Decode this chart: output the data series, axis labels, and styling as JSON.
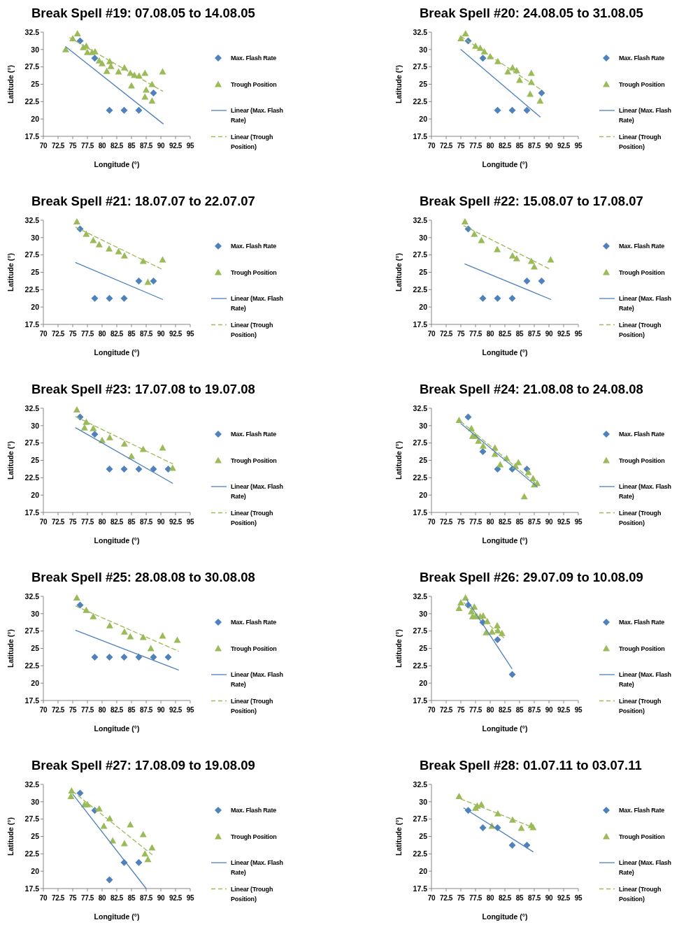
{
  "chart_data": [
    {
      "type": "scatter",
      "title": "Break Spell #19: 07.08.05 to 14.08.05",
      "xlabel": "Longitude (°)",
      "ylabel": "Latitude (°)",
      "xlim": [
        70,
        95
      ],
      "ylim": [
        17.5,
        32.5
      ],
      "xticks": [
        70,
        72.5,
        75,
        77.5,
        80,
        82.5,
        85,
        87.5,
        90,
        92.5,
        95
      ],
      "yticks": [
        17.5,
        20,
        22.5,
        25,
        27.5,
        30,
        32.5
      ],
      "legend": "right",
      "series": [
        {
          "name": "Max. Flash Rate",
          "type": "scatter",
          "marker": "diamond",
          "color": "#4f81bd",
          "x": [
            76.25,
            78.75,
            81.25,
            83.75,
            86.25,
            88.75
          ],
          "values": [
            31.25,
            28.75,
            21.25,
            21.25,
            21.25,
            23.75
          ]
        },
        {
          "name": "Trough Position",
          "type": "scatter",
          "marker": "triangle",
          "color": "#9bbb59",
          "x": [
            73.8,
            75,
            75.8,
            76.8,
            77.3,
            77.5,
            78.3,
            78.8,
            79.5,
            80,
            80.8,
            81.3,
            81.5,
            82.8,
            83.8,
            84.8,
            85,
            85.5,
            86.3,
            87.3,
            87.3,
            87.5,
            88.5,
            88.5,
            90.3
          ],
          "values": [
            30,
            31.6,
            32.3,
            30.3,
            30.5,
            29.6,
            29.6,
            29.7,
            28.4,
            28,
            26.9,
            28.3,
            27.6,
            26.8,
            27.4,
            26.6,
            24.8,
            26.3,
            26.2,
            26.6,
            23.2,
            24.2,
            25,
            22.6,
            26.8
          ]
        },
        {
          "name": "Linear (Max. Flash Rate)",
          "type": "line",
          "marker": "none",
          "line_style": "solid",
          "color": "#4f81bd",
          "x": [
            73.8,
            90.4
          ],
          "values": [
            30.4,
            19.3
          ]
        },
        {
          "name": "Linear (Trough Position)",
          "type": "line",
          "marker": "none",
          "line_style": "dashed",
          "color": "#9bbb59",
          "x": [
            74.5,
            90.3
          ],
          "values": [
            31.7,
            24
          ]
        }
      ]
    },
    {
      "type": "scatter",
      "title": "Break Spell #20: 24.08.05 to 31.08.05",
      "xlabel": "Longitude (°)",
      "ylabel": "Latitude (°)",
      "xlim": [
        70,
        95
      ],
      "ylim": [
        17.5,
        32.5
      ],
      "xticks": [
        70,
        72.5,
        75,
        77.5,
        80,
        82.5,
        85,
        87.5,
        90,
        92.5,
        95
      ],
      "yticks": [
        17.5,
        20,
        22.5,
        25,
        27.5,
        30,
        32.5
      ],
      "legend": "right",
      "series": [
        {
          "name": "Max. Flash Rate",
          "type": "scatter",
          "marker": "diamond",
          "color": "#4f81bd",
          "x": [
            76.25,
            78.75,
            81.25,
            83.75,
            86.25,
            88.75
          ],
          "values": [
            31.25,
            28.75,
            21.25,
            21.25,
            21.25,
            23.75
          ]
        },
        {
          "name": "Trough Position",
          "type": "scatter",
          "marker": "triangle",
          "color": "#9bbb59",
          "x": [
            75,
            75.8,
            77.5,
            78.3,
            79,
            80,
            81.3,
            83,
            83.8,
            84.5,
            85,
            86.8,
            87,
            87,
            88.5
          ],
          "values": [
            31.6,
            32.3,
            30.5,
            30.2,
            29.7,
            29,
            28.3,
            26.8,
            27.4,
            27,
            25.6,
            23.6,
            25.3,
            26.6,
            22.6
          ]
        },
        {
          "name": "Linear (Max. Flash Rate)",
          "type": "line",
          "marker": "none",
          "line_style": "solid",
          "color": "#4f81bd",
          "x": [
            75,
            88.5
          ],
          "values": [
            30,
            20.3
          ]
        },
        {
          "name": "Linear (Trough Position)",
          "type": "line",
          "marker": "none",
          "line_style": "dashed",
          "color": "#9bbb59",
          "x": [
            75,
            88.5
          ],
          "values": [
            31.9,
            24.3
          ]
        }
      ]
    },
    {
      "type": "scatter",
      "title": "Break Spell #21: 18.07.07 to 22.07.07",
      "xlabel": "Longitude (°)",
      "ylabel": "Latitude (°)",
      "xlim": [
        70,
        95
      ],
      "ylim": [
        17.5,
        32.5
      ],
      "xticks": [
        70,
        72.5,
        75,
        77.5,
        80,
        82.5,
        85,
        87.5,
        90,
        92.5,
        95
      ],
      "yticks": [
        17.5,
        20,
        22.5,
        25,
        27.5,
        30,
        32.5
      ],
      "legend": "right",
      "series": [
        {
          "name": "Max. Flash Rate",
          "type": "scatter",
          "marker": "diamond",
          "color": "#4f81bd",
          "x": [
            76.25,
            78.75,
            81.25,
            83.75,
            86.25,
            88.75
          ],
          "values": [
            31.25,
            21.25,
            21.25,
            21.25,
            23.75,
            23.75
          ]
        },
        {
          "name": "Trough Position",
          "type": "scatter",
          "marker": "triangle",
          "color": "#9bbb59",
          "x": [
            75.7,
            77.3,
            78.5,
            79.5,
            81.2,
            82.8,
            83.8,
            87,
            87.8,
            90.3
          ],
          "values": [
            32.3,
            30.5,
            29.6,
            29,
            28.4,
            28,
            27.4,
            26.6,
            23.6,
            26.8
          ]
        },
        {
          "name": "Linear (Max. Flash Rate)",
          "type": "line",
          "marker": "none",
          "line_style": "solid",
          "color": "#4f81bd",
          "x": [
            75.5,
            90.3
          ],
          "values": [
            26.4,
            21.1
          ]
        },
        {
          "name": "Linear (Trough Position)",
          "type": "line",
          "marker": "none",
          "line_style": "dashed",
          "color": "#9bbb59",
          "x": [
            75.5,
            90.3
          ],
          "values": [
            31.5,
            25.4
          ]
        }
      ]
    },
    {
      "type": "scatter",
      "title": "Break Spell #22: 15.08.07 to 17.08.07",
      "xlabel": "Longitude (°)",
      "ylabel": "Latitude (°)",
      "xlim": [
        70,
        95
      ],
      "ylim": [
        17.5,
        32.5
      ],
      "xticks": [
        70,
        72.5,
        75,
        77.5,
        80,
        82.5,
        85,
        87.5,
        90,
        92.5,
        95
      ],
      "yticks": [
        17.5,
        20,
        22.5,
        25,
        27.5,
        30,
        32.5
      ],
      "legend": "right",
      "series": [
        {
          "name": "Max. Flash Rate",
          "type": "scatter",
          "marker": "diamond",
          "color": "#4f81bd",
          "x": [
            76.25,
            78.75,
            81.25,
            83.75,
            86.25,
            88.75
          ],
          "values": [
            31.25,
            21.25,
            21.25,
            21.25,
            23.75,
            23.75
          ]
        },
        {
          "name": "Trough Position",
          "type": "scatter",
          "marker": "triangle",
          "color": "#9bbb59",
          "x": [
            75.7,
            77.3,
            78.5,
            81.2,
            83.8,
            84.5,
            87,
            87.5,
            90.3
          ],
          "values": [
            32.3,
            30.5,
            29.6,
            28.3,
            27.4,
            27,
            26.6,
            25.8,
            26.8
          ]
        },
        {
          "name": "Linear (Max. Flash Rate)",
          "type": "line",
          "marker": "none",
          "line_style": "solid",
          "color": "#4f81bd",
          "x": [
            75.7,
            90.3
          ],
          "values": [
            26.2,
            21.1
          ]
        },
        {
          "name": "Linear (Trough Position)",
          "type": "line",
          "marker": "none",
          "line_style": "dashed",
          "color": "#9bbb59",
          "x": [
            75.5,
            90.3
          ],
          "values": [
            31.7,
            25.4
          ]
        }
      ]
    },
    {
      "type": "scatter",
      "title": "Break Spell #23: 17.07.08 to 19.07.08",
      "xlabel": "Longitude (°)",
      "ylabel": "Latitude (°)",
      "xlim": [
        70,
        95
      ],
      "ylim": [
        17.5,
        32.5
      ],
      "xticks": [
        70,
        72.5,
        75,
        77.5,
        80,
        82.5,
        85,
        87.5,
        90,
        92.5,
        95
      ],
      "yticks": [
        17.5,
        20,
        22.5,
        25,
        27.5,
        30,
        32.5
      ],
      "legend": "right",
      "series": [
        {
          "name": "Max. Flash Rate",
          "type": "scatter",
          "marker": "diamond",
          "color": "#4f81bd",
          "x": [
            76.25,
            78.75,
            81.25,
            83.75,
            86.25,
            88.75,
            91.25
          ],
          "values": [
            31.25,
            28.75,
            23.75,
            23.75,
            23.75,
            23.75,
            23.75
          ]
        },
        {
          "name": "Trough Position",
          "type": "scatter",
          "marker": "triangle",
          "color": "#9bbb59",
          "x": [
            75.7,
            77,
            77.3,
            78.5,
            80,
            81.3,
            83.8,
            85,
            87,
            90.3,
            92
          ],
          "values": [
            32.3,
            29.7,
            30.5,
            29.6,
            27.9,
            28.3,
            27.4,
            25.6,
            26.6,
            26.8,
            23.9
          ]
        },
        {
          "name": "Linear (Max. Flash Rate)",
          "type": "line",
          "marker": "none",
          "line_style": "solid",
          "color": "#4f81bd",
          "x": [
            75.5,
            92
          ],
          "values": [
            29.7,
            21.7
          ]
        },
        {
          "name": "Linear (Trough Position)",
          "type": "line",
          "marker": "none",
          "line_style": "dashed",
          "color": "#9bbb59",
          "x": [
            75.5,
            92
          ],
          "values": [
            31.3,
            24.5
          ]
        }
      ]
    },
    {
      "type": "scatter",
      "title": "Break Spell #24: 21.08.08 to 24.08.08",
      "xlabel": "Longitude (°)",
      "ylabel": "Latitude (°)",
      "xlim": [
        70,
        95
      ],
      "ylim": [
        17.5,
        32.5
      ],
      "xticks": [
        70,
        72.5,
        75,
        77.5,
        80,
        82.5,
        85,
        87.5,
        90,
        92.5,
        95
      ],
      "yticks": [
        17.5,
        20,
        22.5,
        25,
        27.5,
        30,
        32.5
      ],
      "legend": "right",
      "series": [
        {
          "name": "Max. Flash Rate",
          "type": "scatter",
          "marker": "diamond",
          "color": "#4f81bd",
          "x": [
            76.25,
            78.75,
            81.25,
            83.75,
            86.25
          ],
          "values": [
            31.25,
            26.25,
            23.75,
            23.75,
            23.75
          ]
        },
        {
          "name": "Trough Position",
          "type": "scatter",
          "marker": "triangle",
          "color": "#9bbb59",
          "x": [
            74.7,
            76.8,
            77,
            77.5,
            78,
            78.8,
            80.8,
            80.8,
            81.7,
            82.8,
            84.3,
            84.8,
            85.8,
            86.5,
            87.3,
            87.5,
            88
          ],
          "values": [
            30.8,
            29.6,
            28.5,
            28.5,
            27.8,
            27.1,
            26.8,
            25.9,
            24.4,
            25.3,
            24.2,
            24.7,
            19.8,
            23.3,
            22.4,
            21.5,
            21.7
          ]
        },
        {
          "name": "Linear (Max. Flash Rate)",
          "type": "line",
          "marker": "none",
          "line_style": "solid",
          "color": "#4f81bd",
          "x": [
            75,
            88
          ],
          "values": [
            30.3,
            21.2
          ]
        },
        {
          "name": "Linear (Trough Position)",
          "type": "line",
          "marker": "none",
          "line_style": "dashed",
          "color": "#9bbb59",
          "x": [
            75,
            88
          ],
          "values": [
            30.6,
            21.5
          ]
        }
      ]
    },
    {
      "type": "scatter",
      "title": "Break Spell #25: 28.08.08 to 30.08.08",
      "xlabel": "Longitude (°)",
      "ylabel": "Latitude (°)",
      "xlim": [
        70,
        95
      ],
      "ylim": [
        17.5,
        32.5
      ],
      "xticks": [
        70,
        72.5,
        75,
        77.5,
        80,
        82.5,
        85,
        87.5,
        90,
        92.5,
        95
      ],
      "yticks": [
        17.5,
        20,
        22.5,
        25,
        27.5,
        30,
        32.5
      ],
      "legend": "right",
      "series": [
        {
          "name": "Max. Flash Rate",
          "type": "scatter",
          "marker": "diamond",
          "color": "#4f81bd",
          "x": [
            76.25,
            78.75,
            81.25,
            83.75,
            86.25,
            88.75,
            91.25
          ],
          "values": [
            31.25,
            23.75,
            23.75,
            23.75,
            23.75,
            23.75,
            23.75
          ]
        },
        {
          "name": "Trough Position",
          "type": "scatter",
          "marker": "triangle",
          "color": "#9bbb59",
          "x": [
            75.7,
            77.3,
            78.5,
            81.3,
            83.8,
            84.8,
            87,
            88.3,
            90.3,
            92.8
          ],
          "values": [
            32.3,
            30.5,
            29.6,
            28.3,
            27.4,
            26.7,
            26.6,
            25,
            26.8,
            26.2
          ]
        },
        {
          "name": "Linear (Max. Flash Rate)",
          "type": "line",
          "marker": "none",
          "line_style": "solid",
          "color": "#4f81bd",
          "x": [
            75.5,
            93
          ],
          "values": [
            27.6,
            21.9
          ]
        },
        {
          "name": "Linear (Trough Position)",
          "type": "line",
          "marker": "none",
          "line_style": "dashed",
          "color": "#9bbb59",
          "x": [
            75.5,
            93
          ],
          "values": [
            31.1,
            24.6
          ]
        }
      ]
    },
    {
      "type": "scatter",
      "title": "Break Spell #26: 29.07.09 to 10.08.09",
      "xlabel": "Longitude (°)",
      "ylabel": "Latitude (°)",
      "xlim": [
        70,
        95
      ],
      "ylim": [
        17.5,
        32.5
      ],
      "xticks": [
        70,
        72.5,
        75,
        77.5,
        80,
        82.5,
        85,
        87.5,
        90,
        92.5,
        95
      ],
      "yticks": [
        17.5,
        20,
        22.5,
        25,
        27.5,
        30,
        32.5
      ],
      "legend": "right",
      "series": [
        {
          "name": "Max. Flash Rate",
          "type": "scatter",
          "marker": "diamond",
          "color": "#4f81bd",
          "x": [
            76.25,
            78.75,
            81.25,
            83.75
          ],
          "values": [
            31.25,
            28.75,
            26.25,
            21.25
          ]
        },
        {
          "name": "Trough Position",
          "type": "scatter",
          "marker": "triangle",
          "color": "#9bbb59",
          "x": [
            74.7,
            75,
            75.8,
            76.8,
            77,
            77.3,
            77.5,
            78.3,
            78.8,
            79.3,
            79.5,
            80.3,
            81.2,
            81.3,
            82
          ],
          "values": [
            30.8,
            31.6,
            32.3,
            30.3,
            29.6,
            31,
            29.6,
            29.6,
            29.7,
            27.3,
            28.9,
            27.4,
            28.3,
            27.6,
            27.2
          ]
        },
        {
          "name": "Linear (Max. Flash Rate)",
          "type": "line",
          "marker": "none",
          "line_style": "solid",
          "color": "#4f81bd",
          "x": [
            76,
            83.7
          ],
          "values": [
            32,
            22.1
          ]
        },
        {
          "name": "Linear (Trough Position)",
          "type": "line",
          "marker": "none",
          "line_style": "dashed",
          "color": "#9bbb59",
          "x": [
            75.5,
            82.5
          ],
          "values": [
            31.6,
            26.4
          ]
        }
      ]
    },
    {
      "type": "scatter",
      "title": "Break Spell #27: 17.08.09 to 19.08.09",
      "xlabel": "Longitude (°)",
      "ylabel": "Latitude (°)",
      "xlim": [
        70,
        95
      ],
      "ylim": [
        17.5,
        32.5
      ],
      "xticks": [
        70,
        72.5,
        75,
        77.5,
        80,
        82.5,
        85,
        87.5,
        90,
        92.5,
        95
      ],
      "yticks": [
        17.5,
        20,
        22.5,
        25,
        27.5,
        30,
        32.5
      ],
      "legend": "right",
      "series": [
        {
          "name": "Max. Flash Rate",
          "type": "scatter",
          "marker": "diamond",
          "color": "#4f81bd",
          "x": [
            76.25,
            78.75,
            81.25,
            83.75,
            86.25
          ],
          "values": [
            31.25,
            28.75,
            18.75,
            21.25,
            21.25
          ]
        },
        {
          "name": "Trough Position",
          "type": "scatter",
          "marker": "triangle",
          "color": "#9bbb59",
          "x": [
            74.7,
            74.8,
            77,
            77.5,
            79.5,
            80.3,
            81.3,
            81.8,
            83.8,
            84.8,
            87,
            87.3,
            87.8,
            88.5
          ],
          "values": [
            30.8,
            31.6,
            29.6,
            29.6,
            29,
            26.5,
            27.6,
            24.4,
            24,
            26.7,
            25.3,
            22.5,
            21.7,
            23.4
          ]
        },
        {
          "name": "Linear (Max. Flash Rate)",
          "type": "line",
          "marker": "none",
          "line_style": "solid",
          "color": "#4f81bd",
          "x": [
            75,
            87.5
          ],
          "values": [
            31.1,
            17.5
          ]
        },
        {
          "name": "Linear (Trough Position)",
          "type": "line",
          "marker": "none",
          "line_style": "dashed",
          "color": "#9bbb59",
          "x": [
            75,
            88.5
          ],
          "values": [
            31.5,
            22.4
          ]
        }
      ]
    },
    {
      "type": "scatter",
      "title": "Break Spell #28: 01.07.11 to 03.07.11",
      "xlabel": "Longitude (°)",
      "ylabel": "Latitude (°)",
      "xlim": [
        70,
        95
      ],
      "ylim": [
        17.5,
        32.5
      ],
      "xticks": [
        70,
        72.5,
        75,
        77.5,
        80,
        82.5,
        85,
        87.5,
        90,
        92.5,
        95
      ],
      "yticks": [
        17.5,
        20,
        22.5,
        25,
        27.5,
        30,
        32.5
      ],
      "legend": "right",
      "series": [
        {
          "name": "Max. Flash Rate",
          "type": "scatter",
          "marker": "diamond",
          "color": "#4f81bd",
          "x": [
            76.25,
            78.75,
            81.25,
            83.75,
            86.25
          ],
          "values": [
            28.75,
            26.25,
            26.25,
            23.75,
            23.75
          ]
        },
        {
          "name": "Trough Position",
          "type": "scatter",
          "marker": "triangle",
          "color": "#9bbb59",
          "x": [
            74.7,
            77.5,
            77.8,
            78.5,
            80.3,
            81.3,
            83.8,
            85.3,
            87,
            87.3
          ],
          "values": [
            30.8,
            29.1,
            29.4,
            29.6,
            26.5,
            28.3,
            27.4,
            26.2,
            26.6,
            26.3
          ]
        },
        {
          "name": "Linear (Max. Flash Rate)",
          "type": "line",
          "marker": "none",
          "line_style": "solid",
          "color": "#4f81bd",
          "x": [
            75.5,
            87.3
          ],
          "values": [
            29.1,
            22.8
          ]
        },
        {
          "name": "Linear (Trough Position)",
          "type": "line",
          "marker": "none",
          "line_style": "dashed",
          "color": "#9bbb59",
          "x": [
            75,
            87.3
          ],
          "values": [
            30.4,
            26.3
          ]
        }
      ]
    }
  ]
}
